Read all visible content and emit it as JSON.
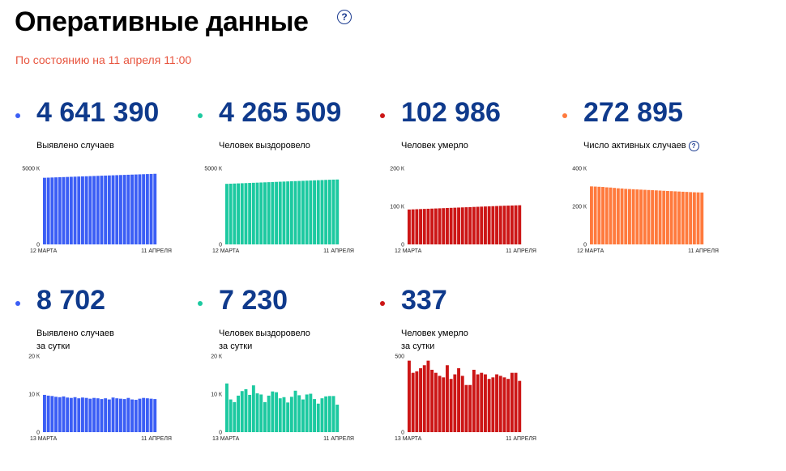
{
  "header": {
    "title": "Оперативные данные",
    "help_icon": "?",
    "status": "По состоянию на 11 апреля 11:00"
  },
  "stats": [
    {
      "value": "4 641 390",
      "label_lines": [
        "Выявлено случаев"
      ],
      "color": "#3b5ef5",
      "help": false
    },
    {
      "value": "4 265 509",
      "label_lines": [
        "Человек выздоровело"
      ],
      "color": "#1cc9a0",
      "help": false
    },
    {
      "value": "102 986",
      "label_lines": [
        "Человек умерло"
      ],
      "color": "#cc1616",
      "help": false
    },
    {
      "value": "272 895",
      "label_lines": [
        "Число активных случаев"
      ],
      "color": "#ff7a3d",
      "help": true
    },
    {
      "value": "8 702",
      "label_lines": [
        "Выявлено случаев",
        "за сутки"
      ],
      "color": "#3b5ef5",
      "help": false
    },
    {
      "value": "7 230",
      "label_lines": [
        "Человек выздоровело",
        "за сутки"
      ],
      "color": "#1cc9a0",
      "help": false
    },
    {
      "value": "337",
      "label_lines": [
        "Человек умерло",
        "за сутки"
      ],
      "color": "#cc1616",
      "help": false
    }
  ],
  "chart_data": [
    {
      "type": "bar",
      "title": "Выявлено случаев",
      "color": "#3b5ef5",
      "x_start": "12 МАРТА",
      "x_end": "11 АПРЕЛЯ",
      "ylim": [
        0,
        5000000
      ],
      "y_ticks": [
        {
          "value": 0,
          "label": "0"
        },
        {
          "value": 5000000,
          "label": "5000 К"
        }
      ],
      "values": [
        4380000,
        4389000,
        4398000,
        4407000,
        4416000,
        4425000,
        4434000,
        4443000,
        4452000,
        4461000,
        4470000,
        4479000,
        4488000,
        4497000,
        4506000,
        4515000,
        4524000,
        4533000,
        4542000,
        4551000,
        4560000,
        4569000,
        4578000,
        4587000,
        4596000,
        4605000,
        4614000,
        4623000,
        4632000,
        4641390
      ]
    },
    {
      "type": "bar",
      "title": "Человек выздоровело",
      "color": "#1cc9a0",
      "x_start": "12 МАРТА",
      "x_end": "11 АПРЕЛЯ",
      "ylim": [
        0,
        5000000
      ],
      "y_ticks": [
        {
          "value": 0,
          "label": "0"
        },
        {
          "value": 5000000,
          "label": "5000 К"
        }
      ],
      "values": [
        3980000,
        3990000,
        4000000,
        4010000,
        4020000,
        4030000,
        4040000,
        4050000,
        4060000,
        4070000,
        4080000,
        4090000,
        4100000,
        4110000,
        4120000,
        4130000,
        4140000,
        4150000,
        4160000,
        4170000,
        4180000,
        4190000,
        4200000,
        4210000,
        4220000,
        4230000,
        4240000,
        4250000,
        4258000,
        4265509
      ]
    },
    {
      "type": "bar",
      "title": "Человек умерло",
      "color": "#cc1616",
      "x_start": "12 МАРТА",
      "x_end": "11 АПРЕЛЯ",
      "ylim": [
        0,
        200000
      ],
      "y_ticks": [
        {
          "value": 0,
          "label": "0"
        },
        {
          "value": 100000,
          "label": "100 К"
        },
        {
          "value": 200000,
          "label": "200 К"
        }
      ],
      "values": [
        91700,
        92100,
        92500,
        92900,
        93300,
        93700,
        94100,
        94500,
        94900,
        95300,
        95700,
        96100,
        96500,
        96900,
        97300,
        97700,
        98100,
        98500,
        98900,
        99300,
        99700,
        100100,
        100500,
        100900,
        101300,
        101700,
        102000,
        102300,
        102650,
        102986
      ]
    },
    {
      "type": "bar",
      "title": "Число активных случаев",
      "color": "#ff7a3d",
      "x_start": "12 МАРТА",
      "x_end": "11 АПРЕЛЯ",
      "ylim": [
        0,
        400000
      ],
      "y_ticks": [
        {
          "value": 0,
          "label": "0"
        },
        {
          "value": 200000,
          "label": "200 К"
        },
        {
          "value": 400000,
          "label": "400 К"
        }
      ],
      "values": [
        305000,
        304000,
        303000,
        302000,
        300000,
        299000,
        297000,
        295000,
        294000,
        292000,
        291000,
        290000,
        289000,
        288000,
        287000,
        286000,
        285000,
        284000,
        283000,
        282000,
        281000,
        280000,
        279000,
        278000,
        277000,
        276000,
        275000,
        274000,
        273500,
        272895
      ]
    },
    {
      "type": "bar",
      "title": "Выявлено случаев за сутки",
      "color": "#3b5ef5",
      "x_start": "13 МАРТА",
      "x_end": "11 АПРЕЛЯ",
      "ylim": [
        0,
        20000
      ],
      "y_ticks": [
        {
          "value": 0,
          "label": "0"
        },
        {
          "value": 10000,
          "label": "10 К"
        },
        {
          "value": 20000,
          "label": "20 К"
        }
      ],
      "values": [
        9800,
        9600,
        9500,
        9300,
        9200,
        9400,
        9100,
        9000,
        9200,
        8900,
        9100,
        9000,
        8800,
        9000,
        8900,
        8700,
        8900,
        8600,
        9100,
        8900,
        8800,
        8700,
        9000,
        8600,
        8500,
        8800,
        9000,
        8900,
        8800,
        8702
      ]
    },
    {
      "type": "bar",
      "title": "Человек выздоровело за сутки",
      "color": "#1cc9a0",
      "x_start": "13 МАРТА",
      "x_end": "11 АПРЕЛЯ",
      "ylim": [
        0,
        20000
      ],
      "y_ticks": [
        {
          "value": 0,
          "label": "0"
        },
        {
          "value": 10000,
          "label": "10 К"
        },
        {
          "value": 20000,
          "label": "20 К"
        }
      ],
      "values": [
        12800,
        8600,
        7900,
        9600,
        10800,
        11300,
        9800,
        12300,
        10200,
        9900,
        7900,
        9600,
        10700,
        10500,
        8900,
        9200,
        7800,
        9300,
        10900,
        9700,
        8600,
        9900,
        10100,
        8700,
        7500,
        8900,
        9400,
        9500,
        9500,
        7230
      ]
    },
    {
      "type": "bar",
      "title": "Человек умерло за сутки",
      "color": "#cc1616",
      "x_start": "13 МАРТА",
      "x_end": "11 АПРЕЛЯ",
      "ylim": [
        0,
        500
      ],
      "y_ticks": [
        {
          "value": 0,
          "label": "0"
        },
        {
          "value": 500,
          "label": "500"
        }
      ],
      "values": [
        470,
        390,
        400,
        420,
        440,
        470,
        410,
        390,
        370,
        360,
        440,
        350,
        380,
        420,
        370,
        310,
        310,
        410,
        380,
        390,
        380,
        350,
        360,
        380,
        370,
        360,
        350,
        390,
        390,
        337
      ]
    }
  ]
}
